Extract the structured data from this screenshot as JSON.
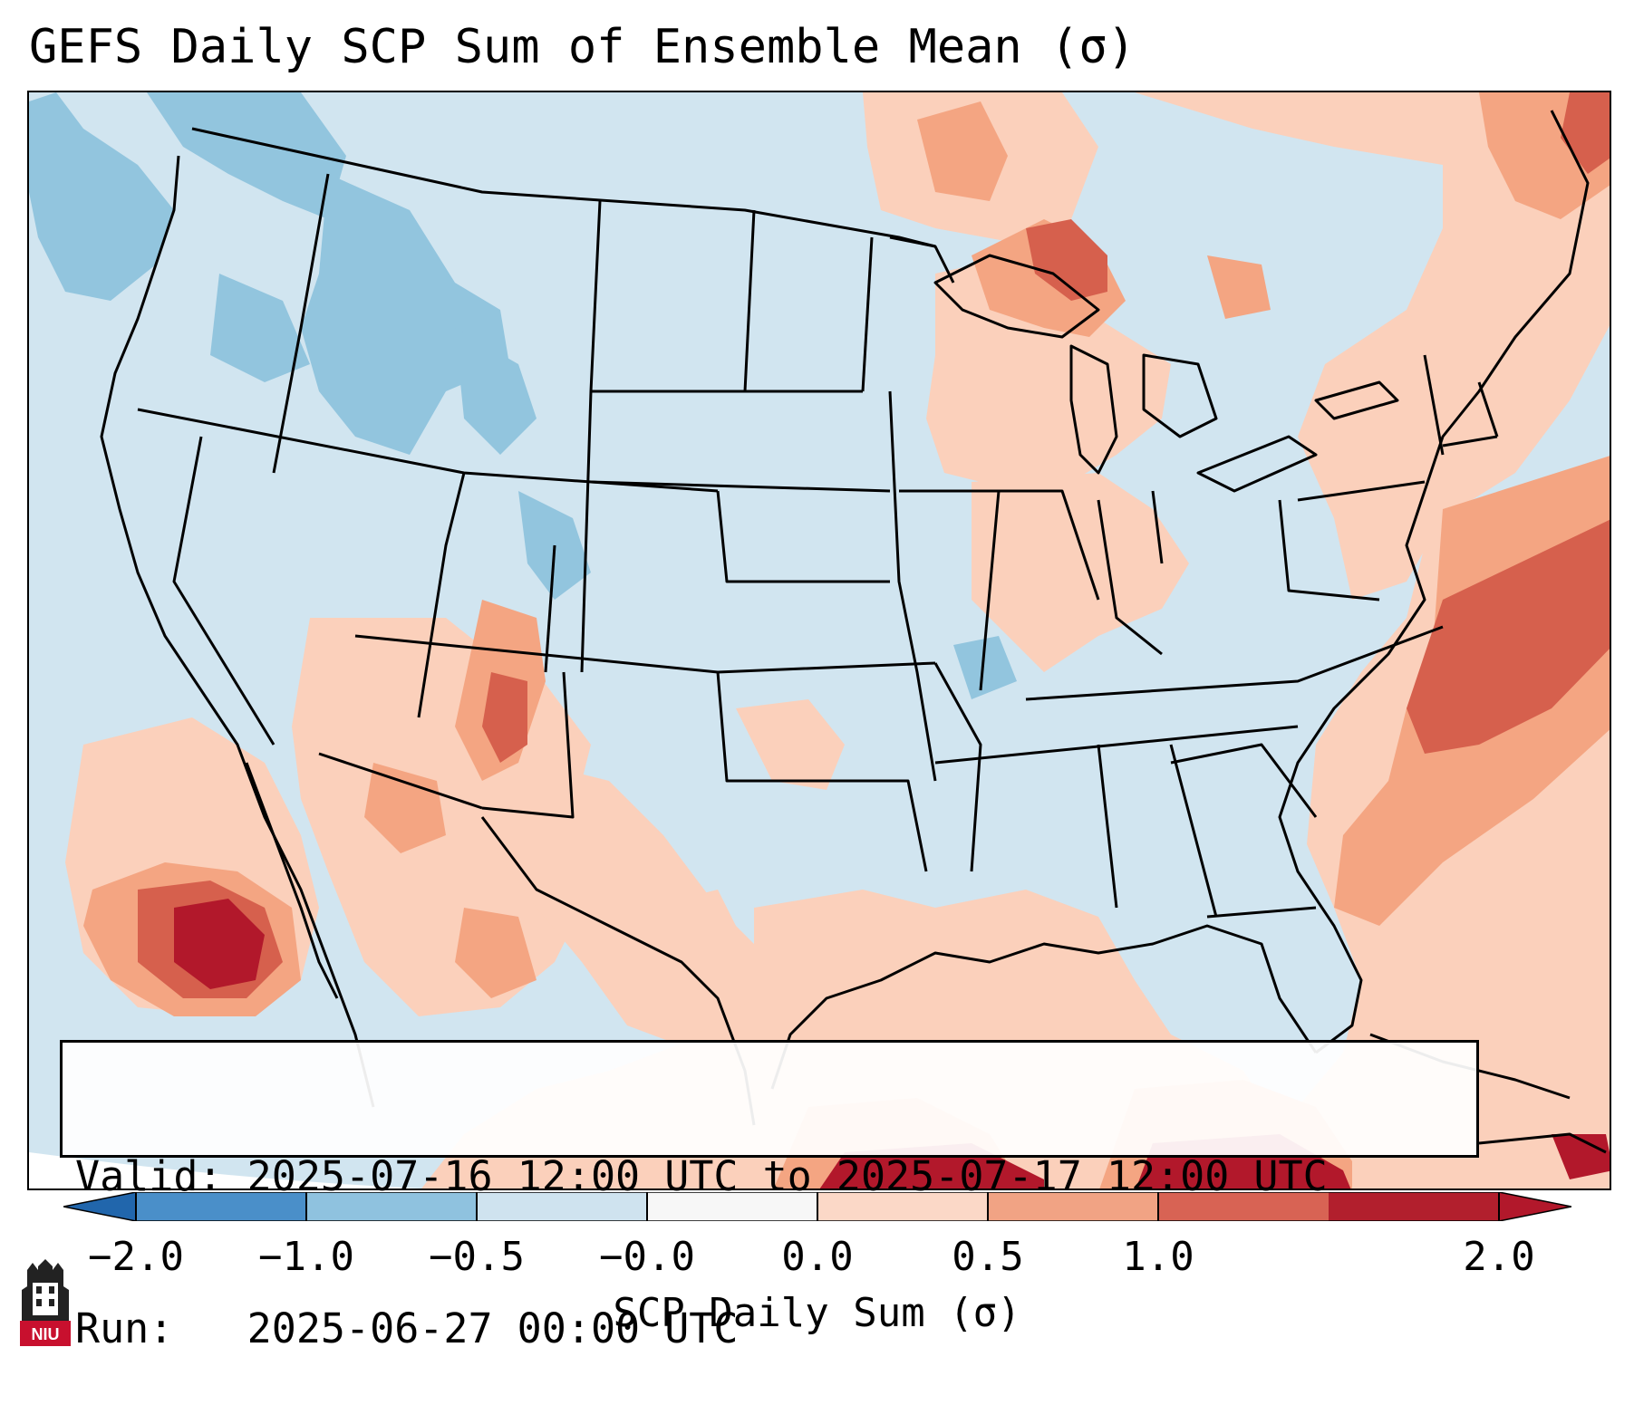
{
  "title": "GEFS Daily SCP Sum of Ensemble Mean (σ)",
  "valid_line": "Valid: 2025-07-16 12:00 UTC to 2025-07-17 12:00 UTC",
  "run_line": "Run:   2025-06-27 00:00 UTC",
  "colorbar": {
    "label": "SCP Daily Sum (σ)",
    "ticks": [
      "−2.0",
      "−1.0",
      "−0.5",
      "−0.0",
      "0.0",
      "0.5",
      "1.0",
      "2.0"
    ],
    "colors": [
      "#4a8fc9",
      "#8fc2df",
      "#cfe3ef",
      "#f7f7f7",
      "#fbd8c7",
      "#f1a384",
      "#d86354",
      "#b21f2d"
    ],
    "under_color": "#2166ac",
    "over_color": "#b2182b"
  },
  "map": {
    "background_color": "#d1e5f0",
    "regions": [
      {
        "name": "great-lakes-upper-michigan",
        "level": "0.5 to 1.0"
      },
      {
        "name": "northern-mexico-pacific-coast",
        "level": "1.0 to 2.0"
      },
      {
        "name": "western-atlantic",
        "level": "1.0 to 2.0"
      },
      {
        "name": "caribbean-cuba",
        "level": "1.0 to 2.0"
      },
      {
        "name": "pacific-northwest",
        "level": "-1.0 to -0.5"
      },
      {
        "name": "idaho",
        "level": "-1.0 to -0.5"
      }
    ]
  },
  "logo": {
    "text": "NIU",
    "color": "#c8102e"
  }
}
